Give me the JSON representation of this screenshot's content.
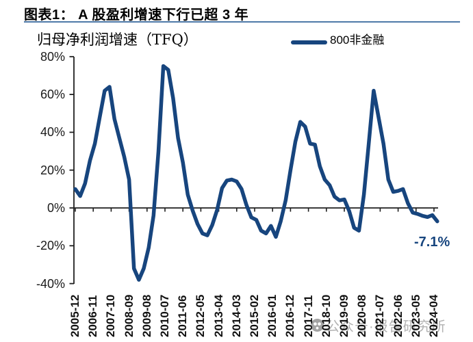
{
  "header": {
    "title": "图表1： A 股盈利增速下行已超 3 年"
  },
  "chart": {
    "subtitle": "归母净利润增速（TFQ）",
    "legend": {
      "label": "800非金融"
    },
    "annotation": {
      "text": "-7.1%"
    },
    "watermark": {
      "logo_icon": "panda-chat-logo-icon",
      "text": "公众号·报告研究所"
    }
  },
  "chart_data": {
    "type": "line",
    "title": "图表1： A 股盈利增速下行已超 3 年",
    "subtitle": "归母净利润增速（TFQ）",
    "xlabel": "",
    "ylabel": "",
    "ylim": [
      -40,
      80
    ],
    "grid": false,
    "legend_position": "top-right",
    "yticks": [
      80,
      60,
      40,
      20,
      0,
      -20,
      -40
    ],
    "ytick_labels": [
      "80%",
      "60%",
      "40%",
      "20%",
      "0%",
      "-20%",
      "-40%"
    ],
    "xtick_labels": [
      "2005-12",
      "2006-11",
      "2007-10",
      "2008-09",
      "2009-08",
      "2010-07",
      "2011-06",
      "2012-05",
      "2013-04",
      "2014-03",
      "2015-02",
      "2016-01",
      "2016-12",
      "2017-11",
      "2018-10",
      "2019-09",
      "2020-08",
      "2021-07",
      "2022-06",
      "2023-05",
      "2024-04"
    ],
    "annotation": {
      "text": "-7.1%",
      "attached_to": "2024-06"
    },
    "series": [
      {
        "name": "800非金融",
        "x": [
          "2005-12",
          "2006-03",
          "2006-06",
          "2006-09",
          "2006-12",
          "2007-03",
          "2007-06",
          "2007-09",
          "2007-12",
          "2008-03",
          "2008-06",
          "2008-09",
          "2008-12",
          "2009-03",
          "2009-06",
          "2009-09",
          "2009-12",
          "2010-03",
          "2010-06",
          "2010-09",
          "2010-12",
          "2011-03",
          "2011-06",
          "2011-09",
          "2011-12",
          "2012-03",
          "2012-06",
          "2012-09",
          "2012-12",
          "2013-03",
          "2013-06",
          "2013-09",
          "2013-12",
          "2014-03",
          "2014-06",
          "2014-09",
          "2014-12",
          "2015-03",
          "2015-06",
          "2015-09",
          "2015-12",
          "2016-03",
          "2016-06",
          "2016-09",
          "2016-12",
          "2017-03",
          "2017-06",
          "2017-09",
          "2017-12",
          "2018-03",
          "2018-06",
          "2018-09",
          "2018-12",
          "2019-03",
          "2019-06",
          "2019-09",
          "2019-12",
          "2020-03",
          "2020-06",
          "2020-09",
          "2020-12",
          "2021-03",
          "2021-06",
          "2021-09",
          "2021-12",
          "2022-03",
          "2022-06",
          "2022-09",
          "2022-12",
          "2023-03",
          "2023-06",
          "2023-09",
          "2023-12",
          "2024-03",
          "2024-06"
        ],
        "values": [
          10,
          6.3,
          13,
          25,
          34,
          48,
          62,
          64,
          47,
          37,
          27,
          15,
          -32,
          -38,
          -32,
          -21,
          -4,
          30,
          75,
          73,
          58,
          37,
          24,
          7,
          -1.5,
          -8.5,
          -13.5,
          -14.5,
          -9,
          -1,
          10.5,
          14.5,
          15,
          14,
          10,
          1.5,
          -5,
          -6.3,
          -12,
          -13.5,
          -9.5,
          -15.3,
          -7,
          4,
          20,
          35,
          45.5,
          43,
          34,
          33.5,
          22,
          15,
          12,
          6,
          4,
          4.5,
          -1.6,
          -10.5,
          -12,
          7,
          34,
          62,
          48,
          34,
          15,
          8.5,
          9,
          10,
          2.5,
          -2.5,
          -3.2,
          -4.2,
          -4.8,
          -3.8,
          -7.1
        ]
      }
    ],
    "colors": {
      "line": "#17457E",
      "title_rule": "#4E79A8",
      "axis": "#1f1f1f",
      "watermark": "#b2b2b2"
    }
  }
}
